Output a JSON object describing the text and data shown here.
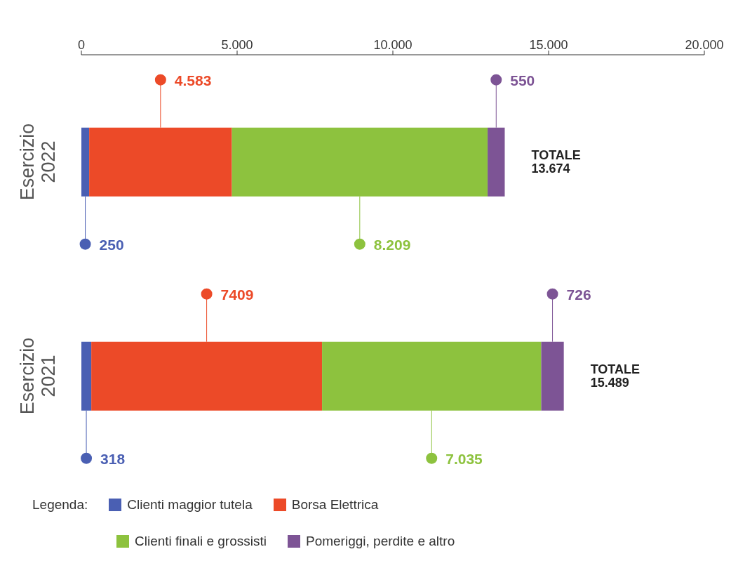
{
  "chart_data": {
    "type": "bar",
    "orientation": "horizontal",
    "stacked": true,
    "categories": [
      "Esercizio 2022",
      "Esercizio 2021"
    ],
    "series": [
      {
        "name": "Clienti maggior tutela",
        "color": "#4a5fb3",
        "values": [
          250,
          318
        ],
        "value_labels": [
          "250",
          "318"
        ]
      },
      {
        "name": "Borsa Elettrica",
        "color": "#ec4a28",
        "values": [
          4583,
          7409
        ],
        "value_labels": [
          "4.583",
          "7409"
        ]
      },
      {
        "name": "Clienti finali e grossisti",
        "color": "#8dc23e",
        "values": [
          8209,
          7035
        ],
        "value_labels": [
          "8.209",
          "7.035"
        ]
      },
      {
        "name": "Pomeriggi, perdite e altro",
        "color": "#7d5495",
        "values": [
          550,
          726
        ],
        "value_labels": [
          "550",
          "726"
        ]
      }
    ],
    "totals": [
      "TOTALE 13.674",
      "TOTALE 15.489"
    ],
    "xlim": [
      0,
      20000
    ],
    "xticks": [
      0,
      {
        "value": 5000,
        "label": "5.000"
      },
      {
        "value": 10000,
        "label": "10.000"
      },
      {
        "value": 15000,
        "label": "15.000"
      },
      {
        "value": 20000,
        "label": "20.000"
      }
    ],
    "legend": "bottom",
    "legend_title": "Legenda:",
    "grid": false
  }
}
